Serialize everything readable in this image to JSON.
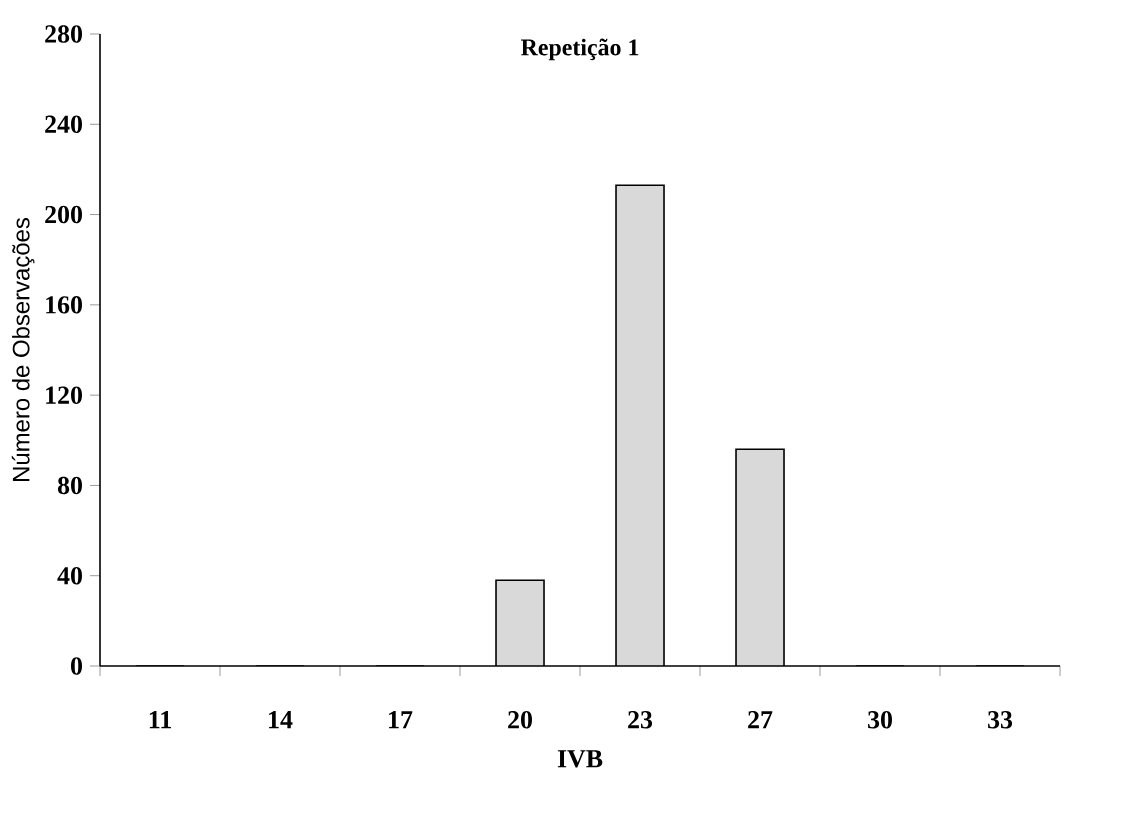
{
  "chart_data": {
    "type": "bar",
    "title": "Repetição 1",
    "xlabel": "IVB",
    "ylabel": "Número de Observações",
    "categories": [
      "11",
      "14",
      "17",
      "20",
      "23",
      "27",
      "30",
      "33"
    ],
    "values": [
      0,
      0,
      0,
      38,
      213,
      96,
      0,
      0
    ],
    "color": "#d9d9d9",
    "ylim": [
      0,
      280
    ],
    "yticks": [
      0,
      40,
      80,
      120,
      160,
      200,
      240,
      280
    ],
    "grid": false
  }
}
